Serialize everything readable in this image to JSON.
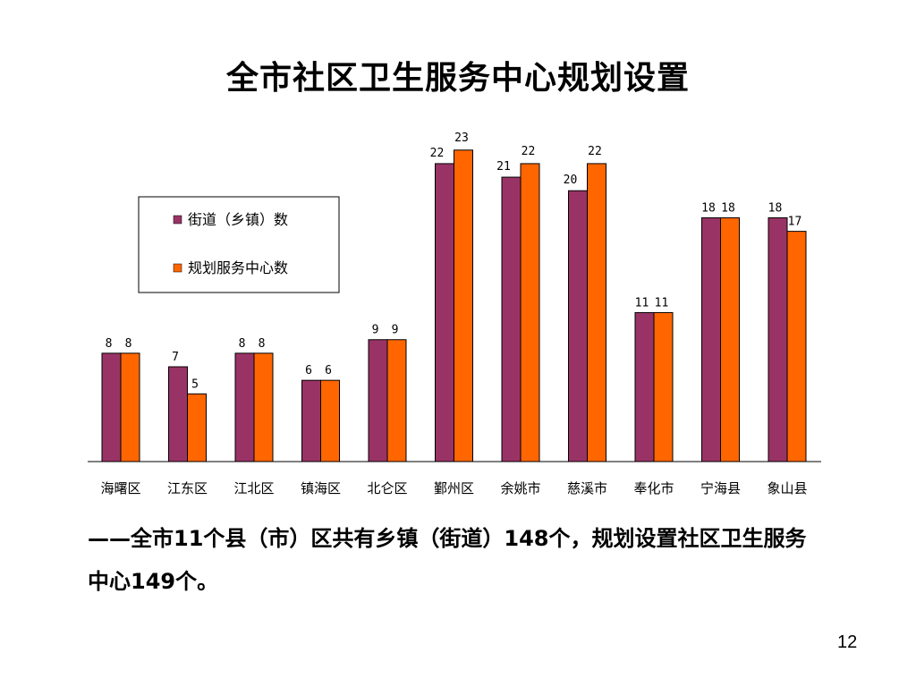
{
  "slide": {
    "title": "全市社区卫生服务中心规划设置",
    "caption": "——全市11个县（市）区共有乡镇（街道）148个，规划设置社区卫生服务中心149个。",
    "page_number": "12"
  },
  "chart_data": {
    "type": "bar",
    "title": "",
    "xlabel": "",
    "ylabel": "",
    "ylim": [
      0,
      25
    ],
    "grid": false,
    "legend_position": "top-left",
    "categories": [
      "海曙区",
      "江东区",
      "江北区",
      "镇海区",
      "北仑区",
      "鄞州区",
      "余姚市",
      "慈溪市",
      "奉化市",
      "宁海县",
      "象山县"
    ],
    "series": [
      {
        "name": "街道（乡镇）数",
        "color": "#993366",
        "values": [
          8,
          7,
          8,
          6,
          9,
          22,
          21,
          20,
          11,
          18,
          18
        ]
      },
      {
        "name": "规划服务中心数",
        "color": "#FF6600",
        "values": [
          8,
          5,
          8,
          6,
          9,
          23,
          22,
          22,
          11,
          18,
          17
        ]
      }
    ]
  }
}
